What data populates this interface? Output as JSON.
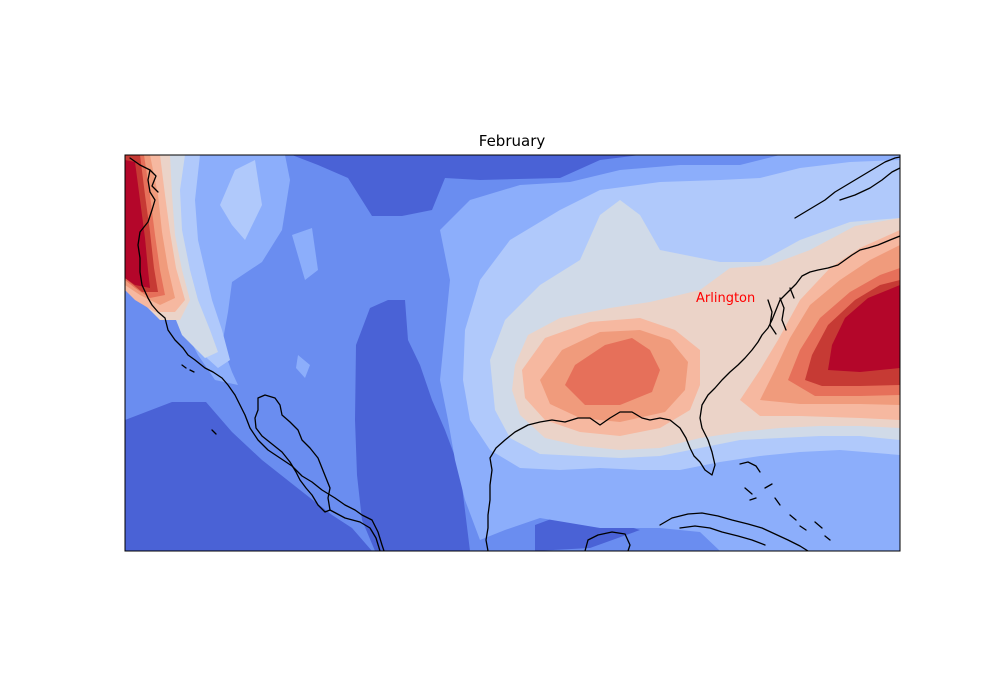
{
  "map": {
    "title": "February",
    "colormap": "coolwarm",
    "city": {
      "name": "Arlington",
      "color": "#ff0000"
    },
    "colors": {
      "level_1": "#4a62d6",
      "level_2": "#6a8df0",
      "level_3": "#8caefb",
      "level_4": "#b0c9fb",
      "level_5": "#d0dae8",
      "level_6": "#ebd3c8",
      "level_7": "#f6b8a0",
      "level_8": "#f09b7c",
      "level_9": "#e6705a",
      "level_10": "#c63a34",
      "level_11": "#b4062a",
      "frame": "#000000",
      "coastline": "#000000"
    }
  }
}
